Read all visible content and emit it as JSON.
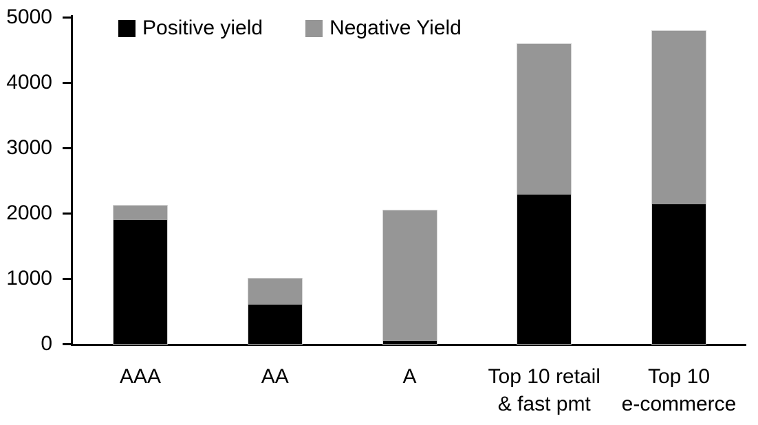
{
  "chart_data": {
    "type": "bar",
    "stacked": true,
    "title": "",
    "categories": [
      "AAA",
      "AA",
      "A",
      "Top 10 retail & fast pmt",
      "Top 10 e-commerce"
    ],
    "category_label_lines": [
      [
        "AAA"
      ],
      [
        "AA"
      ],
      [
        "A"
      ],
      [
        "Top 10 retail",
        "& fast pmt"
      ],
      [
        "Top 10",
        "e-commerce"
      ]
    ],
    "series": [
      {
        "name": "Positive yield",
        "color": "#000000",
        "values": [
          1890,
          600,
          40,
          2280,
          2140
        ]
      },
      {
        "name": "Negative Yield",
        "color": "#969696",
        "values": [
          230,
          400,
          2000,
          2310,
          2650
        ]
      }
    ],
    "totals": [
      2120,
      1000,
      2040,
      4590,
      4790
    ],
    "xlabel": "",
    "ylabel": "",
    "ylim": [
      0,
      5000
    ],
    "yticks": [
      0,
      1000,
      2000,
      3000,
      4000,
      5000
    ],
    "grid": false,
    "legend_position": "top"
  },
  "colors": {
    "positive_yield": "#000000",
    "negative_yield": "#969696",
    "axis": "#000000",
    "background": "#ffffff"
  }
}
